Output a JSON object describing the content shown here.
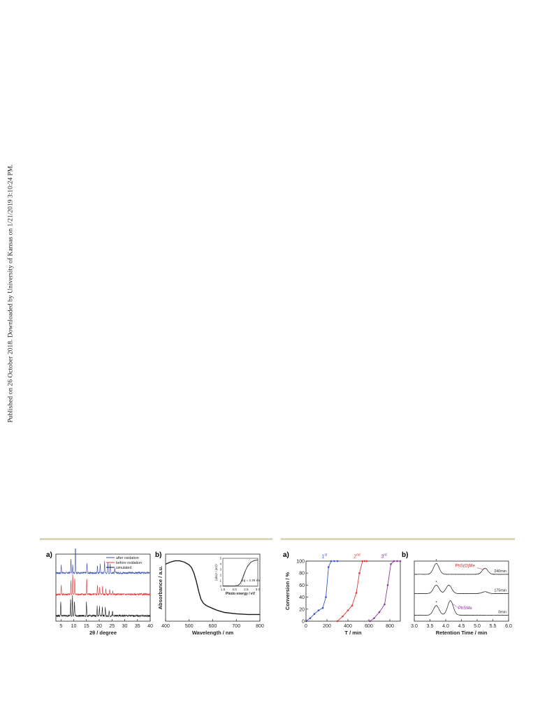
{
  "watermark": "Published on 26 October 2018. Downloaded by University of Kansas on 1/21/2019 3:10:24 PM.",
  "figures": [
    {
      "panels": [
        {
          "label": "a)",
          "chart_data": {
            "type": "line",
            "xlabel": "2θ / degree",
            "ylabel": "",
            "xlim": [
              3,
              40
            ],
            "xticks": [
              5,
              10,
              15,
              20,
              25,
              30,
              35,
              40
            ],
            "legend_position": "top-right",
            "series": [
              {
                "name": "after oxidation",
                "color": "#3a4fb0",
                "baseline": 0.72,
                "peaks": [
                  [
                    5.1,
                    0.12
                  ],
                  [
                    8.9,
                    0.2
                  ],
                  [
                    9.6,
                    0.12
                  ],
                  [
                    10.7,
                    0.72
                  ],
                  [
                    15.2,
                    0.14
                  ],
                  [
                    19.3,
                    0.1
                  ],
                  [
                    20.4,
                    0.14
                  ],
                  [
                    22.1,
                    0.18
                  ],
                  [
                    23.4,
                    0.16
                  ],
                  [
                    24.3,
                    0.14
                  ],
                  [
                    26.1,
                    0.06
                  ]
                ]
              },
              {
                "name": "before oxidation",
                "color": "#e0383c",
                "baseline": 0.4,
                "peaks": [
                  [
                    5.1,
                    0.14
                  ],
                  [
                    8.9,
                    0.2
                  ],
                  [
                    9.6,
                    0.32
                  ],
                  [
                    10.4,
                    0.24
                  ],
                  [
                    15.1,
                    0.24
                  ],
                  [
                    19.3,
                    0.14
                  ],
                  [
                    20.2,
                    0.12
                  ],
                  [
                    21.3,
                    0.12
                  ],
                  [
                    22.6,
                    0.1
                  ],
                  [
                    24.1,
                    0.08
                  ],
                  [
                    25.3,
                    0.06
                  ]
                ]
              },
              {
                "name": "simulated",
                "color": "#1a1a1a",
                "baseline": 0.08,
                "peaks": [
                  [
                    4.9,
                    0.22
                  ],
                  [
                    8.8,
                    0.26
                  ],
                  [
                    9.5,
                    0.3
                  ],
                  [
                    10.3,
                    0.22
                  ],
                  [
                    15.0,
                    0.2
                  ],
                  [
                    19.2,
                    0.14
                  ],
                  [
                    20.1,
                    0.14
                  ],
                  [
                    21.2,
                    0.14
                  ],
                  [
                    22.4,
                    0.12
                  ],
                  [
                    23.9,
                    0.08
                  ],
                  [
                    25.2,
                    0.06
                  ]
                ]
              }
            ]
          }
        },
        {
          "label": "b)",
          "chart_data": {
            "type": "line",
            "xlabel": "Wavelength / nm",
            "ylabel": "Absorbance / a.u.",
            "xlim": [
              400,
              800
            ],
            "ylim": [
              0,
              1
            ],
            "xticks": [
              400,
              500,
              600,
              700,
              800
            ],
            "series": [
              {
                "name": "",
                "color": "#1a1a1a",
                "x": [
                  400,
                  420,
                  440,
                  460,
                  480,
                  500,
                  510,
                  520,
                  530,
                  540,
                  550,
                  560,
                  570,
                  580,
                  600,
                  620,
                  650,
                  700,
                  750,
                  800
                ],
                "y": [
                  0.85,
                  0.88,
                  0.9,
                  0.9,
                  0.88,
                  0.84,
                  0.8,
                  0.72,
                  0.6,
                  0.45,
                  0.33,
                  0.27,
                  0.24,
                  0.22,
                  0.19,
                  0.16,
                  0.13,
                  0.11,
                  0.1,
                  0.1
                ]
              }
            ],
            "inset": {
              "xlabel": "Photo energy / eV",
              "ylabel": "(ahν)² / (eV)²",
              "xlim": [
                1.5,
                3.0
              ],
              "ylim": [
                0,
                5
              ],
              "xticks": [
                1.5,
                2.0,
                2.5,
                3.0
              ],
              "yticks": [
                0,
                1,
                2,
                3,
                4,
                5
              ],
              "annotation": "Eg = 2.26 eV",
              "x": [
                1.5,
                2.0,
                2.15,
                2.25,
                2.35,
                2.45,
                2.55,
                2.7,
                2.85,
                3.0
              ],
              "y": [
                0.05,
                0.08,
                0.15,
                0.5,
                1.5,
                2.6,
                3.5,
                4.3,
                4.6,
                4.7
              ],
              "tangent": [
                [
                  2.26,
                  0
                ],
                [
                  2.65,
                  4.9
                ]
              ]
            }
          }
        }
      ]
    },
    {
      "panels": [
        {
          "label": "a)",
          "chart_data": {
            "type": "line",
            "xlabel": "T / min",
            "ylabel": "Conversion / %",
            "xlim": [
              0,
              900
            ],
            "ylim": [
              0,
              100
            ],
            "xticks": [
              0,
              200,
              400,
              600,
              800
            ],
            "yticks": [
              0,
              20,
              40,
              60,
              80,
              100
            ],
            "series": [
              {
                "name": "1st",
                "color": "#3a55c8",
                "x": [
                  0,
                  40,
                  80,
                  120,
                  160,
                  190,
                  215,
                  240,
                  270,
                  300
                ],
                "y": [
                  0,
                  5,
                  12,
                  18,
                  22,
                  40,
                  90,
                  100,
                  100,
                  100
                ]
              },
              {
                "name": "2nd",
                "color": "#e03a3a",
                "x": [
                  300,
                  350,
                  400,
                  440,
                  480,
                  510,
                  540,
                  560,
                  580
                ],
                "y": [
                  0,
                  8,
                  18,
                  26,
                  47,
                  80,
                  100,
                  100,
                  100
                ]
              },
              {
                "name": "3rd",
                "color": "#8a3a9a",
                "x": [
                  610,
                  650,
                  700,
                  750,
                  780,
                  810,
                  840,
                  870,
                  900
                ],
                "y": [
                  0,
                  5,
                  15,
                  28,
                  60,
                  95,
                  100,
                  100,
                  100
                ]
              }
            ],
            "annotations": [
              {
                "text": "1",
                "sup": "st",
                "color": "#3a55c8",
                "x": 150,
                "y": 104
              },
              {
                "text": "2",
                "sup": "nd",
                "color": "#e03a3a",
                "x": 455,
                "y": 104
              },
              {
                "text": "3",
                "sup": "rd",
                "color": "#8a3a9a",
                "x": 715,
                "y": 104
              }
            ]
          }
        },
        {
          "label": "b)",
          "chart_data": {
            "type": "line",
            "xlabel": "Retention Time / min",
            "ylabel": "",
            "xlim": [
              3.0,
              6.0
            ],
            "xticks": [
              3.0,
              3.5,
              4.0,
              4.5,
              5.0,
              5.5,
              6.0
            ],
            "series": [
              {
                "name": "240min",
                "color": "#1a1a1a",
                "baseline": 0.78,
                "peaks": [
                  [
                    3.7,
                    0.18
                  ],
                  [
                    5.25,
                    0.1
                  ]
                ]
              },
              {
                "name": "175min",
                "color": "#1a1a1a",
                "baseline": 0.46,
                "peaks": [
                  [
                    3.7,
                    0.14
                  ],
                  [
                    4.1,
                    0.14
                  ],
                  [
                    5.25,
                    0.03
                  ]
                ]
              },
              {
                "name": "0min",
                "color": "#1a1a1a",
                "baseline": 0.1,
                "peaks": [
                  [
                    3.7,
                    0.16
                  ],
                  [
                    4.15,
                    0.24
                  ]
                ]
              }
            ],
            "annotations": [
              {
                "text": "*",
                "color": "#1a1a1a",
                "x": 3.7,
                "series": 0
              },
              {
                "text": "*",
                "color": "#1a1a1a",
                "x": 3.7,
                "series": 1
              },
              {
                "text": "*",
                "color": "#1a1a1a",
                "x": 3.7,
                "series": 2
              },
              {
                "text": "PhS(O)Me",
                "color": "#c02a2a"
              },
              {
                "text": "PhSMe",
                "color": "#8a2a9a"
              }
            ]
          }
        }
      ]
    }
  ]
}
